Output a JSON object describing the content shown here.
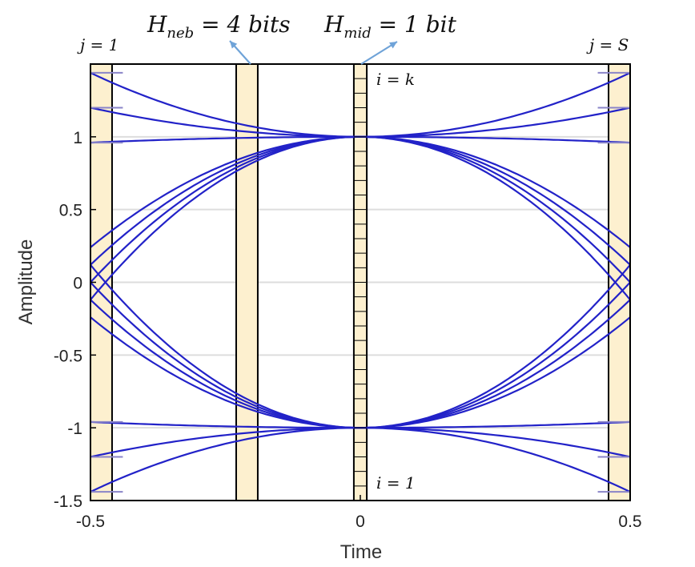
{
  "chart_data": {
    "type": "line",
    "title": "",
    "xlabel": "Time",
    "ylabel": "Amplitude",
    "xlim": [
      -0.5,
      0.5
    ],
    "ylim": [
      -1.5,
      1.5
    ],
    "xticks": [
      {
        "value": -0.5,
        "label": "-0.5"
      },
      {
        "value": 0,
        "label": "0"
      },
      {
        "value": 0.5,
        "label": "0.5"
      }
    ],
    "yticks": [
      {
        "value": 1,
        "label": "1"
      },
      {
        "value": 0.5,
        "label": "0.5"
      },
      {
        "value": 0,
        "label": "0"
      },
      {
        "value": -0.5,
        "label": "-0.5"
      },
      {
        "value": -1,
        "label": "-1"
      },
      {
        "value": -1.5,
        "label": "-1.5"
      }
    ],
    "grid": "horizontal",
    "series_curves": [
      {
        "endpoint_values": [
          -1.44,
          1.44
        ],
        "mid_value": 1,
        "count": 0
      },
      {
        "endpoint_values": [
          1.44,
          1.2,
          0.96,
          0.24,
          0,
          -0.24,
          -0.96,
          -1.2,
          -1.44
        ],
        "mid_values": [
          1,
          -1
        ]
      }
    ],
    "eye_curves": {
      "top_left_ends": [
        1.44,
        1.2,
        0.96,
        0.24,
        0.12,
        -0.12,
        0
      ],
      "bottom_left_ends": [
        -1.44,
        -1.2,
        -0.96,
        -0.24,
        -0.12,
        0.12,
        0
      ],
      "mid_top": 1,
      "mid_bottom": -1
    },
    "highlight_bands": [
      {
        "x_start": -0.5,
        "x_end": -0.46,
        "label": "j = 1"
      },
      {
        "x_start": -0.23,
        "x_end": -0.19,
        "label": ""
      },
      {
        "x_start": -0.012,
        "x_end": 0.012,
        "label": ""
      },
      {
        "x_start": 0.46,
        "x_end": 0.5,
        "label": "j = S"
      }
    ],
    "mid_band_divisions": 30,
    "colors": {
      "curve": "#2222c8",
      "curve_faded": "#8a84c8",
      "band_fill": "#fdf0cf",
      "band_stroke": "#000000",
      "grid": "#dddddd",
      "arrow": "#6fa3d8"
    }
  },
  "annotations": {
    "h_neb": {
      "main": "H",
      "sub": "neb",
      "rest": " = 4 bits"
    },
    "h_mid": {
      "main": "H",
      "sub": "mid",
      "rest": " = 1 bit"
    },
    "j_first": "j = 1",
    "j_last": "j = S",
    "i_top": "i = k",
    "i_bottom": "i = 1"
  }
}
